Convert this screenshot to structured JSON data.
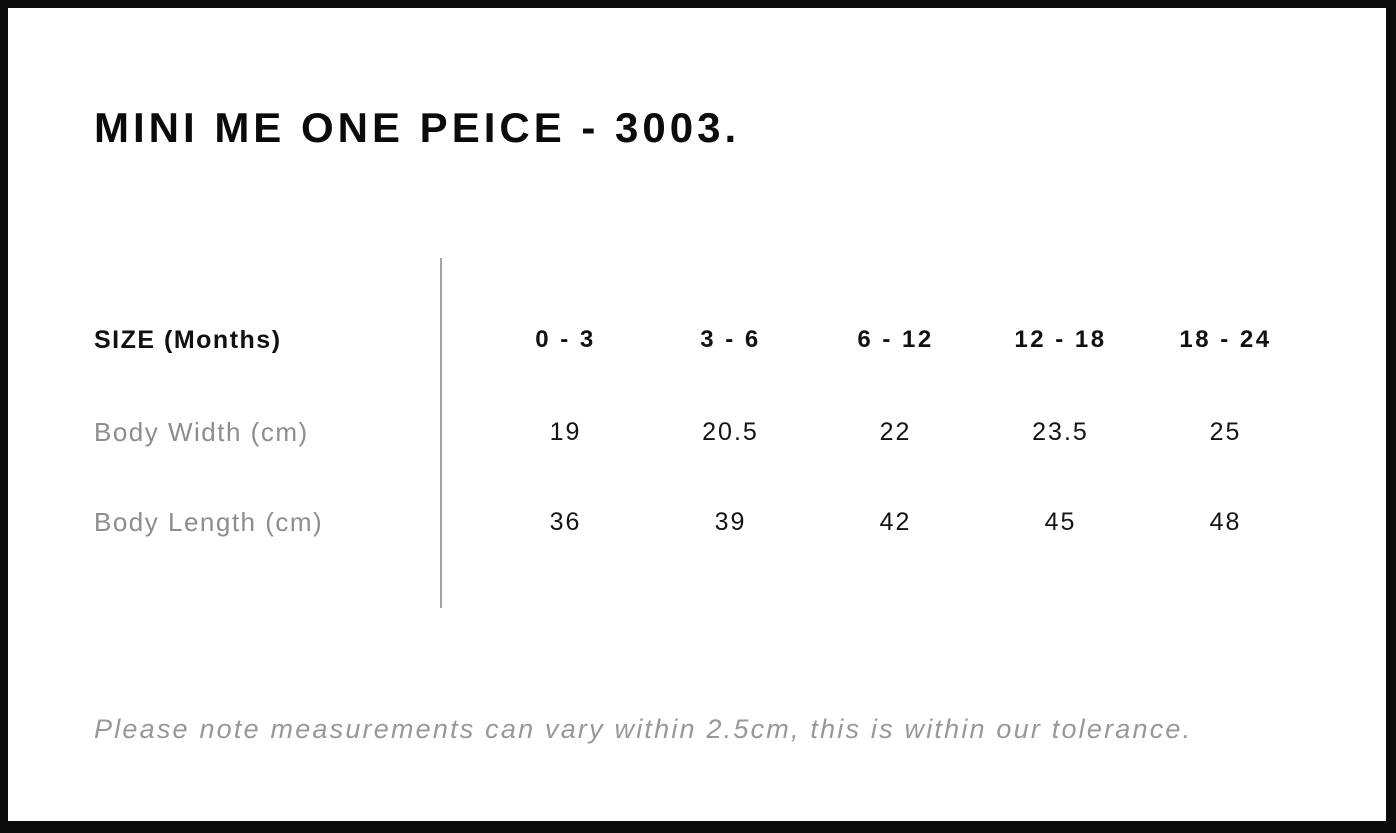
{
  "title": "MINI ME ONE PEICE - 3003.",
  "footnote": "Please note measurements can vary within 2.5cm, this is within our tolerance.",
  "colors": {
    "background": "#ffffff",
    "frame_border": "#0b0b0b",
    "title_text": "#0b0b0b",
    "header_text": "#111111",
    "row_label_text": "#8d8d8d",
    "value_text": "#141414",
    "footnote_text": "#989898",
    "divider": "#a3a3a3"
  },
  "chart_data": {
    "type": "table",
    "title": "MINI ME ONE PEICE - 3003.",
    "columns_header": "SIZE (Months)",
    "columns": [
      "0 - 3",
      "3 - 6",
      "6 - 12",
      "12 - 18",
      "18 - 24"
    ],
    "rows": [
      {
        "label": "Body Width (cm)",
        "values": [
          "19",
          "20.5",
          "22",
          "23.5",
          "25"
        ]
      },
      {
        "label": "Body Length (cm)",
        "values": [
          "36",
          "39",
          "42",
          "45",
          "48"
        ]
      }
    ],
    "note": "Please note measurements can vary within 2.5cm, this is within our tolerance.",
    "layout": {
      "divider_between_labels_and_values": true,
      "grid": "off",
      "value_alignment": "center"
    }
  }
}
